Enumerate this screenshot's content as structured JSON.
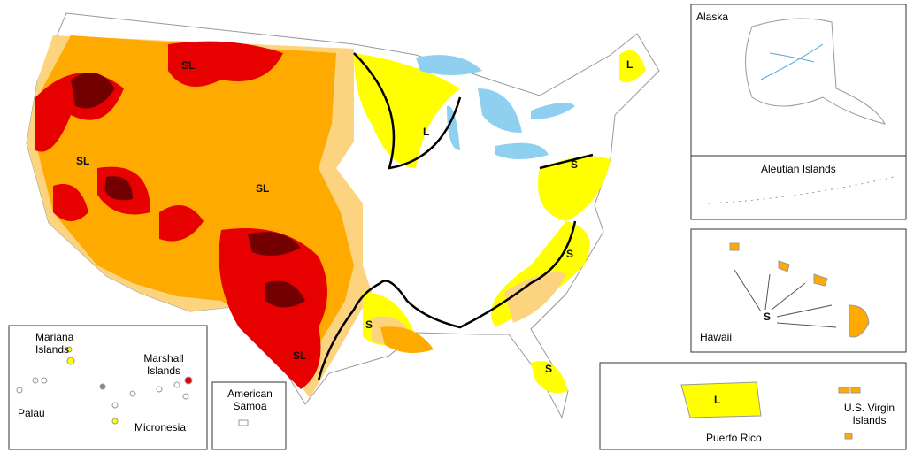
{
  "map_labels": [
    "SL",
    "L",
    "L",
    "SL",
    "SL",
    "S",
    "S",
    "S",
    "SL",
    "S",
    "S",
    "L"
  ],
  "insets": [
    "Alaska",
    "Aleutian Islands",
    "Hawaii",
    "Puerto Rico",
    "U.S. Virgin Islands",
    "American Samoa",
    "Mariana Islands",
    "Marshall Islands",
    "Palau",
    "Micronesia"
  ]
}
